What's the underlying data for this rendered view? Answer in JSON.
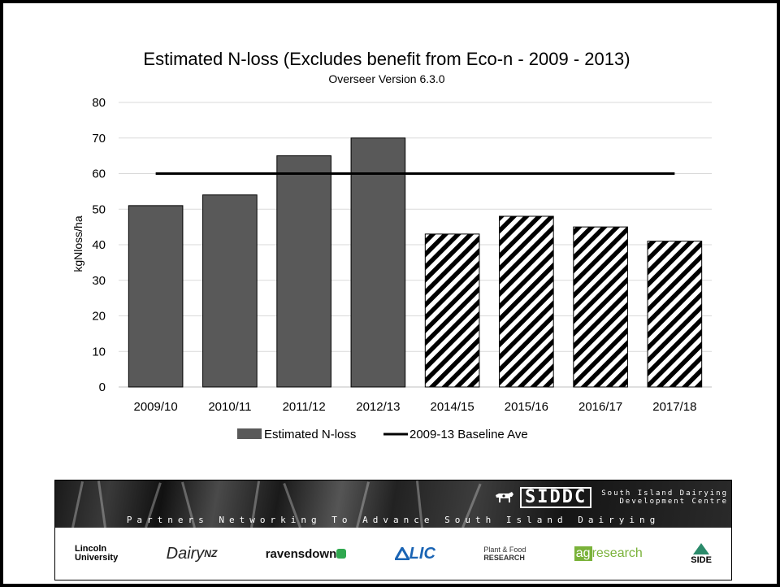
{
  "chart_data": {
    "type": "bar",
    "title": "Estimated N-loss (Excludes benefit from Eco-n - 2009 - 2013)",
    "subtitle": "Overseer Version 6.3.0",
    "xlabel": "",
    "ylabel": "kgNloss/ha",
    "ylim": [
      0,
      80
    ],
    "yticks": [
      0,
      10,
      20,
      30,
      40,
      50,
      60,
      70,
      80
    ],
    "categories": [
      "2009/10",
      "2010/11",
      "2011/12",
      "2012/13",
      "2014/15",
      "2015/16",
      "2016/17",
      "2017/18"
    ],
    "series": [
      {
        "name": "Estimated N-loss",
        "values": [
          51,
          54,
          65,
          70,
          43,
          48,
          45,
          41
        ],
        "fill": [
          "solid",
          "solid",
          "solid",
          "solid",
          "hatched",
          "hatched",
          "hatched",
          "hatched"
        ],
        "color": "#595959"
      },
      {
        "name": "2009-13 Baseline Ave",
        "type": "line",
        "value": 60,
        "color": "#000000"
      }
    ],
    "grid": true,
    "legend_position": "bottom"
  },
  "banner": {
    "org_name": "SIDDC",
    "org_full_line1": "South Island Dairying",
    "org_full_line2": "Development Centre",
    "tagline": "Partners Networking To Advance South Island Dairying",
    "partners": {
      "lincoln_line1": "Lincoln",
      "lincoln_line2": "University",
      "dairynz_a": "Dairy",
      "dairynz_b": "NZ",
      "ravensdown": "ravensdown",
      "lic": "LIC",
      "pfr_line1": "Plant & Food",
      "pfr_line2": "RESEARCH",
      "agresearch_a": "ag",
      "agresearch_b": "research",
      "side": "SIDE"
    }
  }
}
